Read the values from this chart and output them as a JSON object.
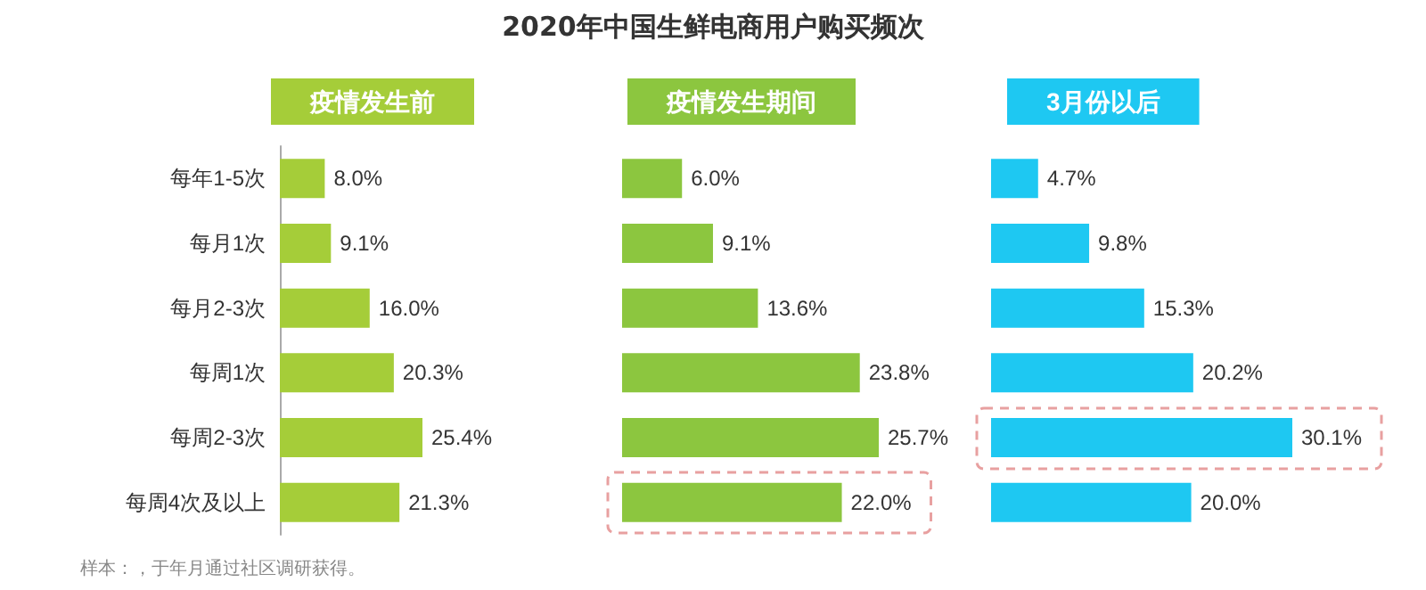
{
  "chart_data": [
    {
      "type": "bar",
      "orientation": "horizontal",
      "subtitle": "疫情发生前",
      "annotations": [
        "样本：，于年月通过社区调研获得。"
      ],
      "categories": [
        "每年1-5次",
        "每月1次",
        "每月2-3次",
        "每周1次",
        "每周2-3次",
        "每周4次及以上"
      ],
      "values": [
        8.0,
        9.1,
        16.0,
        20.3,
        25.4,
        21.3
      ],
      "value_labels": [
        "8.0%",
        "9.1%",
        "16.0%",
        "20.3%",
        "25.4%",
        "21.3%"
      ],
      "color": "#a5cd39",
      "tick_labels": "y"
    },
    {
      "type": "bar",
      "orientation": "horizontal",
      "title": "2020年中国生鲜电商用户购买频次",
      "subtitle": "疫情发生期间",
      "categories": [
        null,
        null,
        null,
        null,
        null,
        null
      ],
      "values": [
        6.0,
        9.1,
        13.6,
        23.8,
        25.7,
        22.0
      ],
      "value_labels": [
        "6.0%",
        "9.1%",
        "13.6%",
        "23.8%",
        "25.7%",
        "22.0%"
      ],
      "color": "#8cc63f",
      "tick_labels": false
    },
    {
      "type": "bar",
      "orientation": "horizontal",
      "subtitle": "3月份以后",
      "categories": [
        null,
        null,
        null,
        null,
        null,
        null
      ],
      "values": [
        4.7,
        9.8,
        15.3,
        20.2,
        30.1,
        20.0
      ],
      "value_labels": [
        "4.7%",
        "9.8%",
        "15.3%",
        "20.2%",
        "30.1%",
        "20.0%"
      ],
      "color": "#1ec8f2",
      "tick_labels": false
    }
  ]
}
